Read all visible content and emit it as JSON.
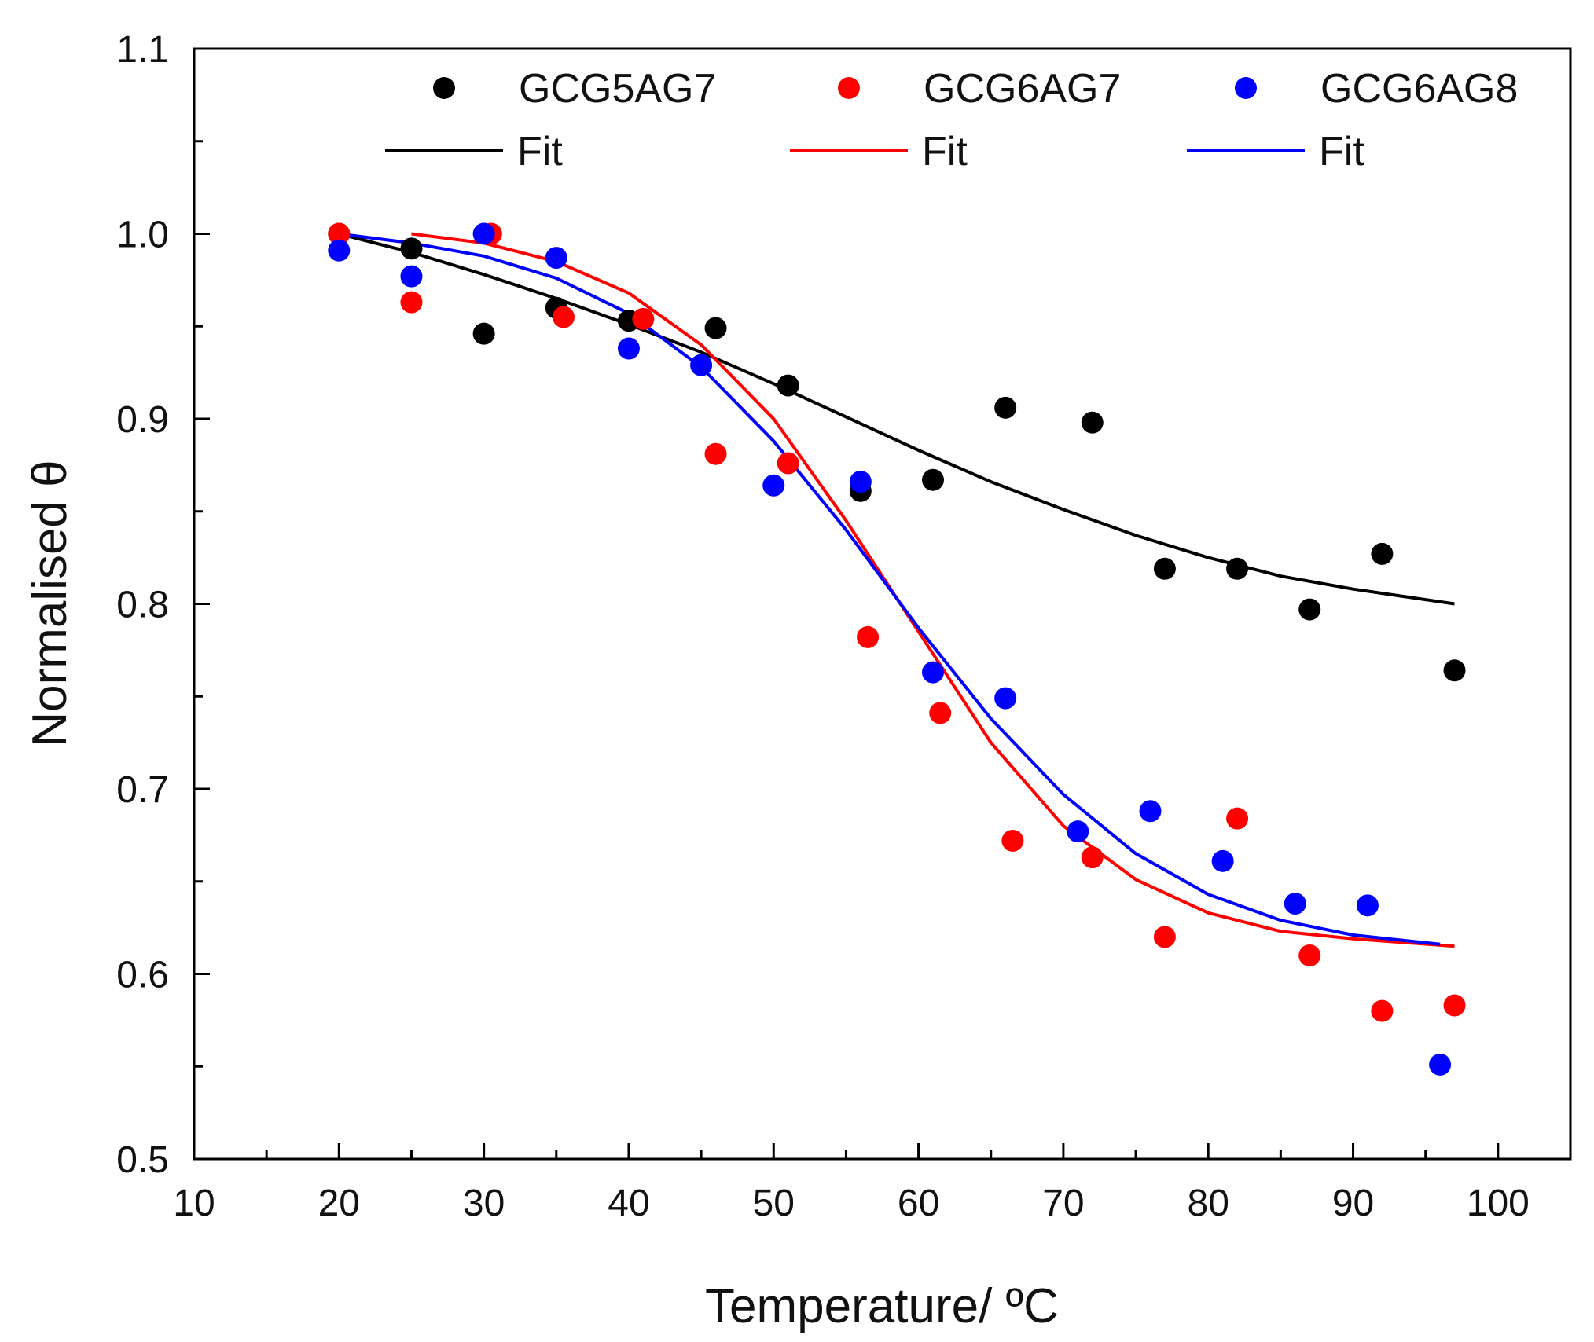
{
  "chart_data": {
    "type": "scatter",
    "title": "",
    "xlabel": "Temperature/ ºC",
    "ylabel": "Normalised θ",
    "xlim": [
      10,
      105
    ],
    "ylim": [
      0.5,
      1.1
    ],
    "x_ticks": [
      "10",
      "20",
      "30",
      "40",
      "50",
      "60",
      "70",
      "80",
      "90",
      "100"
    ],
    "y_ticks": [
      "0.5",
      "0.6",
      "0.7",
      "0.8",
      "0.9",
      "1.0",
      "1.1"
    ],
    "grid": false,
    "legend_position": "top",
    "series": [
      {
        "name": "GCG5AG7",
        "color": "#000000",
        "kind": "points",
        "x": [
          20,
          25,
          30,
          35,
          40,
          46,
          51,
          56,
          61,
          66,
          72,
          77,
          82,
          87,
          92,
          97
        ],
        "y": [
          1.0,
          0.992,
          0.946,
          0.96,
          0.953,
          0.949,
          0.918,
          0.861,
          0.867,
          0.906,
          0.898,
          0.819,
          0.819,
          0.797,
          0.827,
          0.764
        ]
      },
      {
        "name": "GCG6AG7",
        "color": "#ff0000",
        "kind": "points",
        "x": [
          20,
          25,
          30.5,
          35.5,
          41,
          46,
          51,
          56.5,
          61.5,
          66.5,
          72,
          77,
          82,
          87,
          92,
          97
        ],
        "y": [
          1.0,
          0.963,
          1.0,
          0.955,
          0.954,
          0.881,
          0.876,
          0.782,
          0.741,
          0.672,
          0.663,
          0.62,
          0.684,
          0.61,
          0.58,
          0.583
        ]
      },
      {
        "name": "GCG6AG8",
        "color": "#0000ff",
        "kind": "points",
        "x": [
          20,
          25,
          30,
          35,
          40,
          45,
          50,
          56,
          61,
          66,
          71,
          76,
          81,
          86,
          91,
          96
        ],
        "y": [
          0.991,
          0.977,
          1.0,
          0.987,
          0.938,
          0.929,
          0.864,
          0.866,
          0.763,
          0.749,
          0.677,
          0.688,
          0.661,
          0.638,
          0.637,
          0.551
        ]
      },
      {
        "name": "Fit",
        "color": "#000000",
        "kind": "line",
        "x": [
          20,
          25,
          30,
          35,
          40,
          45,
          50,
          55,
          60,
          65,
          70,
          75,
          80,
          85,
          90,
          97
        ],
        "y": [
          1.0,
          0.99,
          0.978,
          0.965,
          0.951,
          0.936,
          0.919,
          0.901,
          0.883,
          0.866,
          0.851,
          0.837,
          0.825,
          0.815,
          0.808,
          0.8
        ]
      },
      {
        "name": "Fit",
        "color": "#ff0000",
        "kind": "line",
        "x": [
          25,
          30,
          35,
          40,
          45,
          50,
          55,
          60,
          65,
          70,
          75,
          80,
          85,
          90,
          97
        ],
        "y": [
          1.0,
          0.995,
          0.985,
          0.968,
          0.94,
          0.9,
          0.845,
          0.785,
          0.725,
          0.68,
          0.651,
          0.633,
          0.623,
          0.619,
          0.615
        ]
      },
      {
        "name": "Fit",
        "color": "#0000ff",
        "kind": "line",
        "x": [
          20,
          25,
          30,
          35,
          40,
          45,
          50,
          55,
          60,
          65,
          70,
          75,
          80,
          85,
          90,
          96
        ],
        "y": [
          1.0,
          0.995,
          0.988,
          0.976,
          0.957,
          0.928,
          0.888,
          0.84,
          0.787,
          0.738,
          0.697,
          0.665,
          0.643,
          0.629,
          0.621,
          0.616
        ]
      }
    ]
  }
}
